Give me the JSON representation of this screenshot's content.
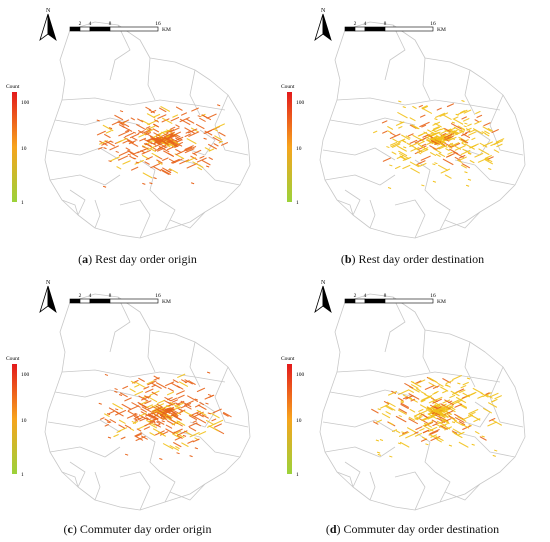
{
  "panels": [
    {
      "id": "a",
      "letter": "a",
      "caption": "Rest day order origin",
      "color_tone": "orange"
    },
    {
      "id": "b",
      "letter": "b",
      "caption": "Rest day order destination",
      "color_tone": "yellow"
    },
    {
      "id": "c",
      "letter": "c",
      "caption": "Commuter day order origin",
      "color_tone": "orange"
    },
    {
      "id": "d",
      "letter": "d",
      "caption": "Commuter day order destination",
      "color_tone": "yellow"
    }
  ],
  "north_arrow": {
    "label": "N"
  },
  "scale_bar": {
    "ticks": [
      "2",
      "4",
      "8",
      "16"
    ],
    "unit": "KM"
  },
  "legend": {
    "title": "Count",
    "labels": [
      "100",
      "10",
      "1"
    ],
    "scale": "log",
    "colors": {
      "high": "#e31a1c",
      "mid": "#f7a41d",
      "low": "#9bd23a"
    }
  },
  "colors": {
    "boundary": "#c8c8c8",
    "road_orange": "#e8641b",
    "road_yellow": "#f2c21b"
  }
}
